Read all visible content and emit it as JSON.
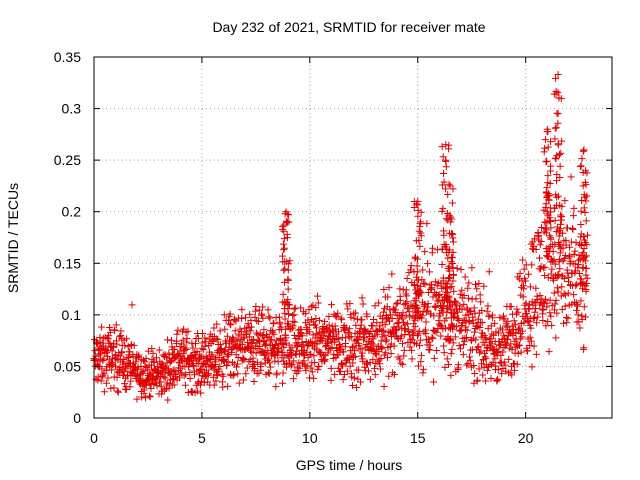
{
  "chart_data": {
    "type": "scatter",
    "title": "Day 232 of 2021, SRMTID for receiver mate",
    "xlabel": "GPS time / hours",
    "ylabel": "SRMTID / TECUs",
    "xlim": [
      0,
      24
    ],
    "ylim": [
      0,
      0.35
    ],
    "x_ticks": [
      0,
      5,
      10,
      15,
      20
    ],
    "x_tick_labels": [
      "0",
      "5",
      "10",
      "15",
      "20"
    ],
    "y_ticks": [
      0,
      0.05,
      0.1,
      0.15,
      0.2,
      0.25,
      0.3,
      0.35
    ],
    "y_tick_labels": [
      "0",
      "0.05",
      "0.1",
      "0.15",
      "0.2",
      "0.25",
      "0.3",
      "0.35"
    ],
    "grid": true,
    "marker": "+",
    "color": "#e00000",
    "series": [
      {
        "name": "SRMTID",
        "trend_x": [
          0,
          1,
          2,
          3,
          4,
          5,
          6,
          7,
          8,
          9,
          10,
          11,
          12,
          13,
          14,
          15,
          16,
          17,
          18,
          19,
          20,
          21,
          22,
          22.8
        ],
        "trend_y": [
          0.055,
          0.06,
          0.045,
          0.04,
          0.06,
          0.05,
          0.065,
          0.07,
          0.065,
          0.075,
          0.07,
          0.075,
          0.07,
          0.075,
          0.09,
          0.1,
          0.105,
          0.09,
          0.075,
          0.065,
          0.11,
          0.15,
          0.14,
          0.12
        ],
        "bursts": [
          {
            "x": 8.9,
            "y": 0.2
          },
          {
            "x": 15.0,
            "y": 0.21
          },
          {
            "x": 16.3,
            "y": 0.265
          },
          {
            "x": 16.5,
            "y": 0.225
          },
          {
            "x": 21.0,
            "y": 0.28
          },
          {
            "x": 21.5,
            "y": 0.333
          },
          {
            "x": 22.7,
            "y": 0.26
          }
        ]
      }
    ]
  }
}
